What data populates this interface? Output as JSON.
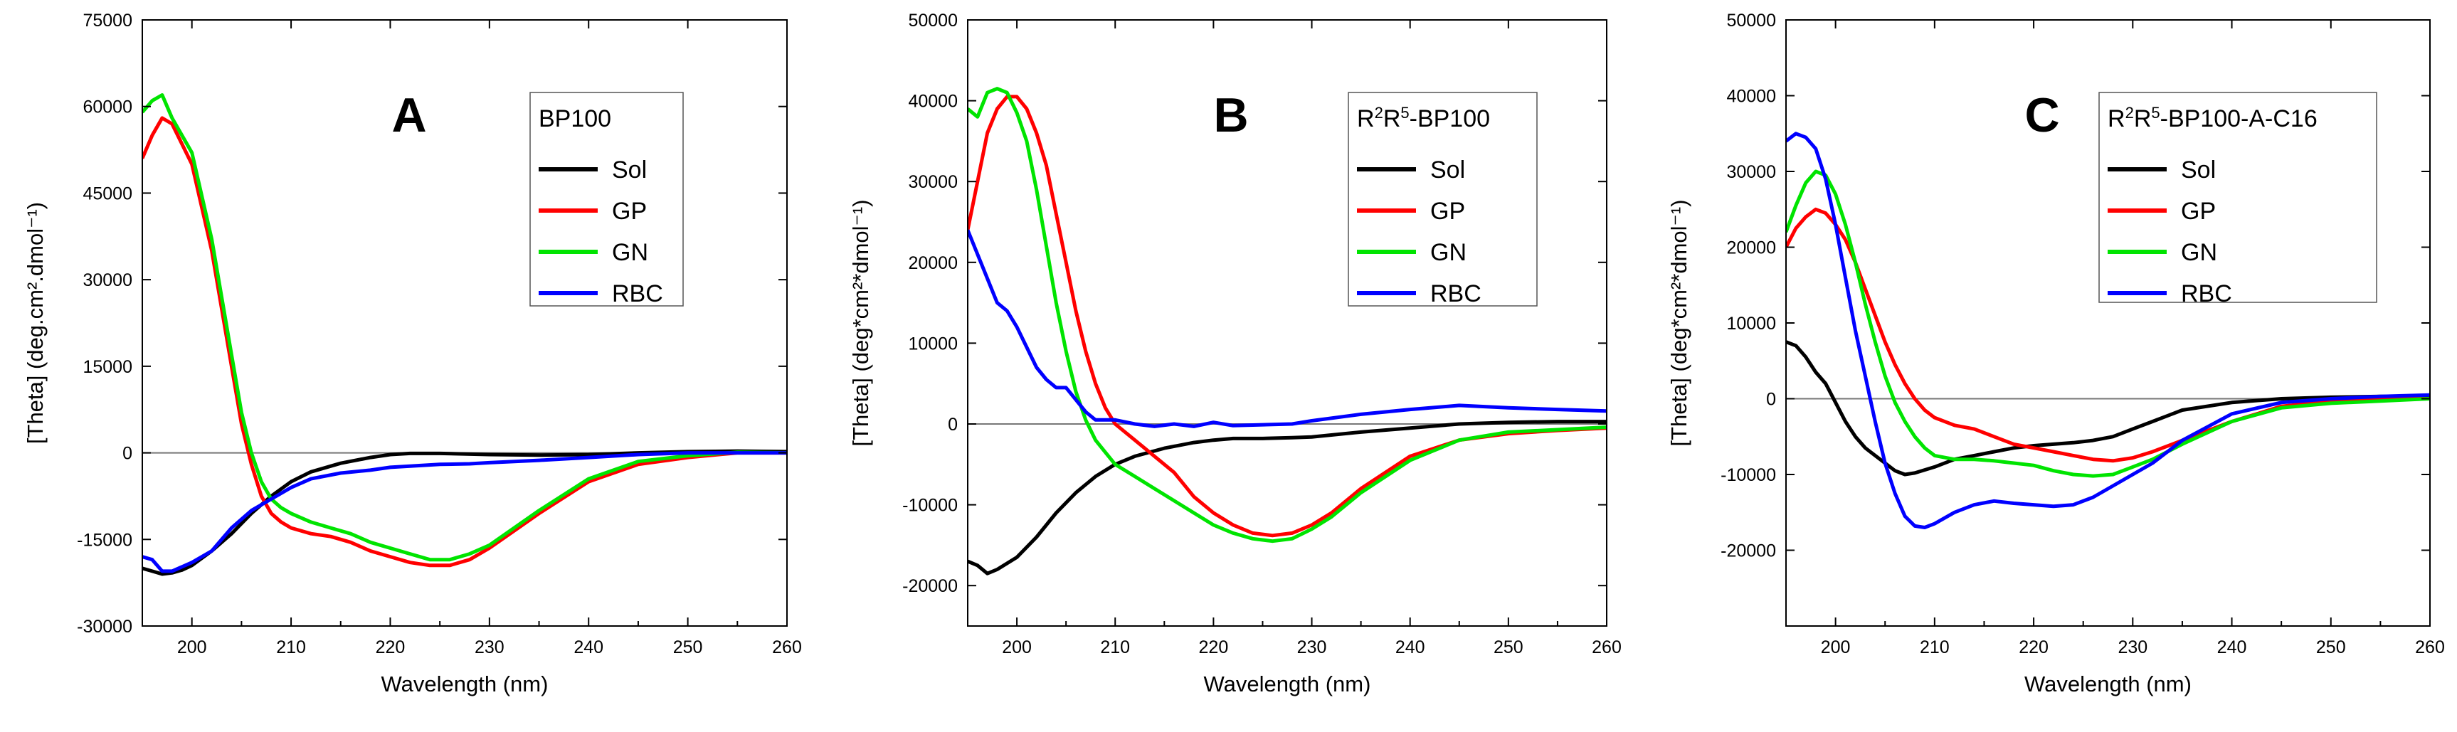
{
  "chart_data": [
    {
      "type": "line",
      "panel_label": "A",
      "legend_title": "BP100",
      "xlabel": "Wavelength (nm)",
      "ylabel": "[Theta] (deg.cm².dmol⁻¹)",
      "xlim": [
        195,
        260
      ],
      "ylim": [
        -30000,
        75000
      ],
      "xticks": [
        200,
        210,
        220,
        230,
        240,
        250,
        260
      ],
      "xtick_labels": [
        "200",
        "210",
        "220",
        "230",
        "240",
        "250",
        "260"
      ],
      "yticks": [
        -30000,
        -15000,
        0,
        15000,
        30000,
        45000,
        60000,
        75000
      ],
      "ytick_labels": [
        "-30000",
        "-15000",
        "0",
        "15000",
        "30000",
        "45000",
        "60000",
        "75000"
      ],
      "zero_line": true,
      "series": [
        {
          "name": "Sol",
          "color": "#000000",
          "x": [
            195,
            196,
            197,
            198,
            199,
            200,
            202,
            204,
            206,
            208,
            210,
            212,
            215,
            218,
            220,
            222,
            225,
            230,
            235,
            240,
            245,
            250,
            255,
            260
          ],
          "y": [
            -20000,
            -20500,
            -21000,
            -20800,
            -20300,
            -19500,
            -17000,
            -14000,
            -10500,
            -7500,
            -5000,
            -3300,
            -1800,
            -800,
            -300,
            -100,
            -100,
            -300,
            -400,
            -300,
            0,
            200,
            300,
            200
          ]
        },
        {
          "name": "GP",
          "color": "#ff0000",
          "x": [
            195,
            196,
            197,
            198,
            200,
            202,
            204,
            205,
            206,
            207,
            208,
            209,
            210,
            212,
            214,
            216,
            218,
            220,
            222,
            224,
            226,
            228,
            230,
            235,
            240,
            245,
            250,
            255,
            260
          ],
          "y": [
            51000,
            55000,
            58000,
            57000,
            50000,
            35000,
            15000,
            5000,
            -2000,
            -7500,
            -10500,
            -12000,
            -13000,
            -14000,
            -14500,
            -15500,
            -17000,
            -18000,
            -19000,
            -19500,
            -19500,
            -18500,
            -16500,
            -10500,
            -5000,
            -2000,
            -800,
            0,
            0
          ]
        },
        {
          "name": "GN",
          "color": "#00e400",
          "x": [
            195,
            196,
            197,
            198,
            200,
            202,
            204,
            205,
            206,
            207,
            208,
            209,
            210,
            212,
            214,
            216,
            218,
            220,
            222,
            224,
            226,
            228,
            230,
            235,
            240,
            245,
            250,
            255,
            260
          ],
          "y": [
            59000,
            61000,
            62000,
            58000,
            52000,
            37000,
            17000,
            7000,
            0,
            -5000,
            -8000,
            -9500,
            -10500,
            -12000,
            -13000,
            -14000,
            -15500,
            -16500,
            -17500,
            -18500,
            -18500,
            -17500,
            -16000,
            -10000,
            -4500,
            -1500,
            -500,
            100,
            0
          ]
        },
        {
          "name": "RBC",
          "color": "#0000ff",
          "x": [
            195,
            196,
            197,
            198,
            200,
            202,
            204,
            206,
            208,
            210,
            212,
            215,
            218,
            220,
            222,
            225,
            228,
            230,
            235,
            240,
            245,
            250,
            255,
            260
          ],
          "y": [
            -18000,
            -18500,
            -20500,
            -20500,
            -19000,
            -17000,
            -13000,
            -10000,
            -8000,
            -6000,
            -4500,
            -3500,
            -3000,
            -2500,
            -2300,
            -2000,
            -1900,
            -1700,
            -1300,
            -800,
            -300,
            0,
            0,
            0
          ]
        }
      ]
    },
    {
      "type": "line",
      "panel_label": "B",
      "legend_title_parts": [
        "R",
        "2",
        "R",
        "5",
        "-BP100"
      ],
      "xlabel": "Wavelength (nm)",
      "ylabel": "[Theta] (deg*cm²*dmol⁻¹)",
      "xlim": [
        195,
        260
      ],
      "ylim": [
        -25000,
        50000
      ],
      "xticks": [
        200,
        210,
        220,
        230,
        240,
        250,
        260
      ],
      "xtick_labels": [
        "200",
        "210",
        "220",
        "230",
        "240",
        "250",
        "260"
      ],
      "yticks": [
        -20000,
        -10000,
        0,
        10000,
        20000,
        30000,
        40000,
        50000
      ],
      "ytick_labels": [
        "-20000",
        "-10000",
        "0",
        "10000",
        "20000",
        "30000",
        "40000",
        "50000"
      ],
      "zero_line": true,
      "series": [
        {
          "name": "Sol",
          "color": "#000000",
          "x": [
            195,
            196,
            197,
            198,
            200,
            202,
            204,
            206,
            208,
            210,
            212,
            215,
            218,
            220,
            222,
            225,
            228,
            230,
            235,
            240,
            245,
            250,
            255,
            260
          ],
          "y": [
            -17000,
            -17500,
            -18500,
            -18000,
            -16500,
            -14000,
            -11000,
            -8500,
            -6500,
            -5000,
            -4000,
            -3000,
            -2300,
            -2000,
            -1800,
            -1800,
            -1700,
            -1600,
            -1000,
            -500,
            0,
            200,
            300,
            300
          ]
        },
        {
          "name": "GP",
          "color": "#ff0000",
          "x": [
            195,
            196,
            197,
            198,
            199,
            200,
            201,
            202,
            203,
            204,
            205,
            206,
            207,
            208,
            209,
            210,
            212,
            214,
            216,
            218,
            220,
            222,
            224,
            226,
            228,
            230,
            232,
            235,
            240,
            245,
            250,
            255,
            260
          ],
          "y": [
            24000,
            30000,
            36000,
            39000,
            40500,
            40500,
            39000,
            36000,
            32000,
            26000,
            20000,
            14000,
            9000,
            5000,
            2000,
            0,
            -2000,
            -4000,
            -6000,
            -9000,
            -11000,
            -12500,
            -13500,
            -13800,
            -13500,
            -12500,
            -11000,
            -8000,
            -4000,
            -2000,
            -1200,
            -800,
            -500
          ]
        },
        {
          "name": "GN",
          "color": "#00e400",
          "x": [
            195,
            196,
            197,
            198,
            199,
            200,
            201,
            202,
            203,
            204,
            205,
            206,
            207,
            208,
            209,
            210,
            212,
            214,
            216,
            218,
            220,
            222,
            224,
            226,
            228,
            230,
            232,
            235,
            240,
            245,
            250,
            255,
            260
          ],
          "y": [
            39000,
            38000,
            41000,
            41500,
            41000,
            38500,
            35000,
            29000,
            22000,
            15000,
            9000,
            4000,
            500,
            -2000,
            -3500,
            -5000,
            -6500,
            -8000,
            -9500,
            -11000,
            -12500,
            -13500,
            -14200,
            -14500,
            -14200,
            -13000,
            -11500,
            -8500,
            -4500,
            -2000,
            -1000,
            -700,
            -400
          ]
        },
        {
          "name": "RBC",
          "color": "#0000ff",
          "x": [
            195,
            196,
            197,
            198,
            199,
            200,
            201,
            202,
            203,
            204,
            205,
            206,
            207,
            208,
            210,
            212,
            214,
            216,
            218,
            220,
            222,
            225,
            228,
            230,
            235,
            240,
            245,
            250,
            255,
            260
          ],
          "y": [
            24000,
            21000,
            18000,
            15000,
            14000,
            12000,
            9500,
            7000,
            5500,
            4500,
            4500,
            3000,
            1500,
            500,
            500,
            0,
            -300,
            0,
            -300,
            200,
            -200,
            -100,
            0,
            400,
            1200,
            1800,
            2300,
            2000,
            1800,
            1600
          ]
        }
      ]
    },
    {
      "type": "line",
      "panel_label": "C",
      "legend_title_parts": [
        "R",
        "2",
        "R",
        "5",
        "-BP100-A-C16"
      ],
      "xlabel": "Wavelength (nm)",
      "ylabel": "[Theta] (deg*cm²*dmol⁻¹)",
      "xlim": [
        195,
        260
      ],
      "ylim": [
        -30000,
        50000
      ],
      "xticks": [
        200,
        210,
        220,
        230,
        240,
        250,
        260
      ],
      "xtick_labels": [
        "200",
        "210",
        "220",
        "230",
        "240",
        "250",
        "260"
      ],
      "yticks": [
        -30000,
        -20000,
        -10000,
        0,
        10000,
        20000,
        30000,
        40000,
        50000
      ],
      "ytick_labels": [
        "",
        "-20000",
        "-10000",
        "0",
        "10000",
        "20000",
        "30000",
        "40000",
        "50000"
      ],
      "zero_line": true,
      "series": [
        {
          "name": "Sol",
          "color": "#000000",
          "x": [
            195,
            196,
            197,
            198,
            199,
            200,
            201,
            202,
            203,
            204,
            205,
            206,
            207,
            208,
            210,
            212,
            214,
            216,
            218,
            220,
            222,
            224,
            226,
            228,
            230,
            232,
            235,
            240,
            245,
            250,
            255,
            260
          ],
          "y": [
            7500,
            7000,
            5500,
            3500,
            2000,
            -500,
            -3000,
            -5000,
            -6500,
            -7500,
            -8500,
            -9500,
            -10000,
            -9800,
            -9000,
            -8000,
            -7500,
            -7000,
            -6500,
            -6200,
            -6000,
            -5800,
            -5500,
            -5000,
            -4000,
            -3000,
            -1500,
            -500,
            0,
            200,
            300,
            300
          ]
        },
        {
          "name": "GP",
          "color": "#ff0000",
          "x": [
            195,
            196,
            197,
            198,
            199,
            200,
            201,
            202,
            203,
            204,
            205,
            206,
            207,
            208,
            209,
            210,
            212,
            214,
            216,
            218,
            220,
            222,
            224,
            226,
            228,
            230,
            232,
            235,
            240,
            245,
            250,
            255,
            260
          ],
          "y": [
            20000,
            22500,
            24000,
            25000,
            24500,
            23000,
            21000,
            18000,
            14500,
            11000,
            7500,
            4500,
            2000,
            0,
            -1500,
            -2500,
            -3500,
            -4000,
            -5000,
            -6000,
            -6500,
            -7000,
            -7500,
            -8000,
            -8200,
            -7800,
            -7000,
            -5500,
            -3000,
            -1000,
            -300,
            0,
            0
          ]
        },
        {
          "name": "GN",
          "color": "#00e400",
          "x": [
            195,
            196,
            197,
            198,
            199,
            200,
            201,
            202,
            203,
            204,
            205,
            206,
            207,
            208,
            209,
            210,
            212,
            214,
            216,
            218,
            220,
            222,
            224,
            226,
            228,
            230,
            232,
            235,
            240,
            245,
            250,
            255,
            260
          ],
          "y": [
            22000,
            25500,
            28500,
            30000,
            29500,
            27000,
            23000,
            18000,
            12500,
            7500,
            3000,
            -500,
            -3000,
            -5000,
            -6500,
            -7500,
            -8000,
            -8000,
            -8200,
            -8500,
            -8800,
            -9500,
            -10000,
            -10200,
            -10000,
            -9000,
            -8000,
            -6000,
            -3000,
            -1200,
            -600,
            -300,
            0
          ]
        },
        {
          "name": "RBC",
          "color": "#0000ff",
          "x": [
            195,
            196,
            197,
            198,
            199,
            200,
            201,
            202,
            203,
            204,
            205,
            206,
            207,
            208,
            209,
            210,
            212,
            214,
            216,
            218,
            220,
            222,
            224,
            226,
            228,
            230,
            232,
            235,
            240,
            245,
            250,
            255,
            260
          ],
          "y": [
            34000,
            35000,
            34500,
            33000,
            29000,
            23000,
            16000,
            9000,
            3000,
            -3000,
            -8500,
            -12500,
            -15500,
            -16800,
            -17000,
            -16500,
            -15000,
            -14000,
            -13500,
            -13800,
            -14000,
            -14200,
            -14000,
            -13000,
            -11500,
            -10000,
            -8500,
            -5500,
            -2000,
            -500,
            0,
            300,
            500
          ]
        }
      ]
    }
  ]
}
